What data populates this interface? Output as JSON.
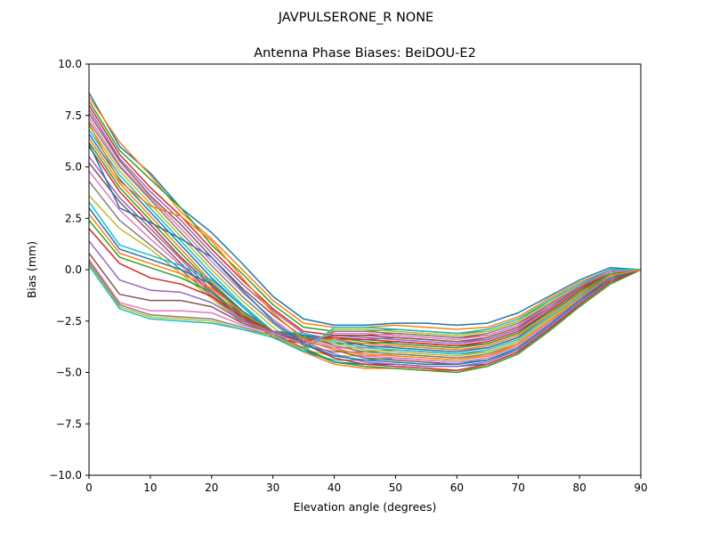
{
  "chart_data": {
    "type": "line",
    "suptitle": "JAVPULSERONE_R  NONE",
    "title": "Antenna Phase Biases: BeiDOU-E2",
    "xlabel": "Elevation angle (degrees)",
    "ylabel": "Bias (mm)",
    "xlim": [
      0,
      90
    ],
    "ylim": [
      -10,
      10
    ],
    "xticks": [
      0,
      10,
      20,
      30,
      40,
      50,
      60,
      70,
      80,
      90
    ],
    "yticks": [
      -10.0,
      -7.5,
      -5.0,
      -2.5,
      0.0,
      2.5,
      5.0,
      7.5,
      10.0
    ],
    "ytick_labels": [
      "−10.0",
      "−7.5",
      "−5.0",
      "−2.5",
      "0.0",
      "2.5",
      "5.0",
      "7.5",
      "10.0"
    ],
    "grid": false,
    "legend": "none",
    "colors": [
      "#1f77b4",
      "#ff7f0e",
      "#2ca02c",
      "#d62728",
      "#9467bd",
      "#8c564b",
      "#e377c2",
      "#7f7f7f",
      "#bcbd22",
      "#17becf"
    ],
    "x": [
      0,
      5,
      10,
      15,
      20,
      25,
      30,
      35,
      40,
      45,
      50,
      55,
      60,
      65,
      70,
      75,
      80,
      85,
      90
    ],
    "series": [
      {
        "values": [
          8.6,
          6.0,
          4.7,
          3.0,
          1.8,
          0.3,
          -1.3,
          -2.4,
          -2.7,
          -2.7,
          -2.6,
          -2.6,
          -2.7,
          -2.6,
          -2.1,
          -1.3,
          -0.5,
          0.1,
          0.0
        ]
      },
      {
        "values": [
          8.4,
          6.2,
          4.6,
          2.8,
          1.5,
          0.0,
          -1.5,
          -2.6,
          -2.8,
          -2.8,
          -2.7,
          -2.8,
          -2.9,
          -2.8,
          -2.3,
          -1.4,
          -0.6,
          0.0,
          0.0
        ]
      },
      {
        "values": [
          8.2,
          5.8,
          4.4,
          3.0,
          1.2,
          -0.2,
          -1.7,
          -2.8,
          -3.0,
          -3.0,
          -2.9,
          -3.0,
          -3.1,
          -3.0,
          -2.5,
          -1.5,
          -0.7,
          0.0,
          0.0
        ]
      },
      {
        "values": [
          8.0,
          5.6,
          4.0,
          2.6,
          1.0,
          -0.5,
          -1.9,
          -3.0,
          -3.2,
          -3.2,
          -3.1,
          -3.2,
          -3.3,
          -3.2,
          -2.7,
          -1.7,
          -0.8,
          -0.1,
          0.0
        ]
      },
      {
        "values": [
          7.8,
          5.4,
          3.8,
          2.4,
          0.8,
          -0.7,
          -2.0,
          -3.1,
          -3.4,
          -3.4,
          -3.3,
          -3.4,
          -3.5,
          -3.4,
          -2.9,
          -1.8,
          -0.9,
          -0.1,
          0.0
        ]
      },
      {
        "values": [
          7.6,
          5.3,
          3.6,
          2.2,
          0.6,
          -0.9,
          -2.2,
          -3.3,
          -3.6,
          -3.6,
          -3.5,
          -3.6,
          -3.7,
          -3.6,
          -3.1,
          -2.0,
          -1.0,
          -0.2,
          0.0
        ]
      },
      {
        "values": [
          7.4,
          5.1,
          3.5,
          2.0,
          0.4,
          -1.1,
          -2.4,
          -3.5,
          -3.8,
          -3.8,
          -3.7,
          -3.8,
          -3.9,
          -3.8,
          -3.3,
          -2.2,
          -1.1,
          -0.2,
          0.0
        ]
      },
      {
        "values": [
          7.2,
          5.0,
          3.4,
          1.8,
          0.2,
          -1.3,
          -2.6,
          -3.7,
          -4.0,
          -4.0,
          -3.9,
          -4.0,
          -4.1,
          -4.0,
          -3.5,
          -2.4,
          -1.3,
          -0.3,
          0.0
        ]
      },
      {
        "values": [
          7.0,
          4.8,
          3.2,
          1.6,
          0.0,
          -1.5,
          -2.8,
          -3.9,
          -4.2,
          -4.2,
          -4.1,
          -4.2,
          -4.3,
          -4.2,
          -3.7,
          -2.6,
          -1.4,
          -0.4,
          0.0
        ]
      },
      {
        "values": [
          6.8,
          4.6,
          3.0,
          1.4,
          -0.2,
          -1.7,
          -3.0,
          -4.0,
          -4.4,
          -4.4,
          -4.3,
          -4.4,
          -4.5,
          -4.4,
          -3.9,
          -2.8,
          -1.6,
          -0.5,
          0.0
        ]
      },
      {
        "values": [
          6.6,
          4.4,
          2.8,
          1.2,
          -0.4,
          -1.8,
          -3.1,
          -3.9,
          -4.5,
          -4.6,
          -4.6,
          -4.7,
          -4.7,
          -4.6,
          -4.0,
          -2.9,
          -1.7,
          -0.6,
          0.0
        ]
      },
      {
        "values": [
          6.4,
          4.2,
          2.6,
          1.0,
          -0.6,
          -2.0,
          -3.2,
          -4.0,
          -4.6,
          -4.8,
          -4.8,
          -4.9,
          -4.9,
          -4.7,
          -4.1,
          -3.0,
          -1.8,
          -0.7,
          0.0
        ]
      },
      {
        "values": [
          6.2,
          4.0,
          2.4,
          0.8,
          -0.7,
          -2.1,
          -3.3,
          -3.8,
          -4.5,
          -4.7,
          -4.8,
          -4.9,
          -5.0,
          -4.7,
          -4.1,
          -3.0,
          -1.8,
          -0.7,
          0.0
        ]
      },
      {
        "values": [
          6.0,
          3.8,
          2.2,
          0.6,
          -0.8,
          -2.2,
          -3.3,
          -3.6,
          -4.3,
          -4.6,
          -4.7,
          -4.8,
          -4.9,
          -4.6,
          -4.0,
          -2.9,
          -1.7,
          -0.6,
          0.0
        ]
      },
      {
        "values": [
          5.5,
          3.5,
          2.0,
          0.5,
          -1.0,
          -2.3,
          -3.2,
          -3.5,
          -4.1,
          -4.5,
          -4.6,
          -4.7,
          -4.7,
          -4.5,
          -3.9,
          -2.8,
          -1.6,
          -0.5,
          0.0
        ]
      },
      {
        "values": [
          5.2,
          3.3,
          1.8,
          0.3,
          -1.1,
          -2.4,
          -3.1,
          -3.4,
          -3.9,
          -4.3,
          -4.4,
          -4.5,
          -4.6,
          -4.4,
          -3.8,
          -2.7,
          -1.5,
          -0.5,
          0.0
        ]
      },
      {
        "values": [
          4.8,
          2.9,
          1.5,
          0.2,
          -1.2,
          -2.5,
          -3.0,
          -3.3,
          -3.8,
          -4.2,
          -4.3,
          -4.4,
          -4.5,
          -4.3,
          -3.7,
          -2.6,
          -1.5,
          -0.4,
          0.0
        ]
      },
      {
        "values": [
          4.3,
          2.4,
          1.2,
          0.0,
          -1.3,
          -2.5,
          -3.0,
          -3.2,
          -3.7,
          -4.0,
          -4.1,
          -4.2,
          -4.3,
          -4.1,
          -3.6,
          -2.5,
          -1.4,
          -0.4,
          0.0
        ]
      },
      {
        "values": [
          3.6,
          2.0,
          1.0,
          -0.2,
          -1.4,
          -2.6,
          -3.0,
          -3.1,
          -3.6,
          -3.9,
          -4.0,
          -4.1,
          -4.2,
          -4.0,
          -3.5,
          -2.4,
          -1.3,
          -0.3,
          0.0
        ]
      },
      {
        "values": [
          3.3,
          1.2,
          0.7,
          0.2,
          -0.5,
          -1.8,
          -3.0,
          -3.1,
          -3.5,
          -3.8,
          -3.9,
          -4.0,
          -4.1,
          -3.9,
          -3.4,
          -2.3,
          -1.3,
          -0.3,
          0.0
        ]
      },
      {
        "values": [
          3.0,
          1.0,
          0.5,
          0.0,
          -0.7,
          -2.0,
          -3.0,
          -3.2,
          -3.4,
          -3.7,
          -3.8,
          -3.9,
          -4.0,
          -3.8,
          -3.3,
          -2.2,
          -1.2,
          -0.3,
          0.0
        ]
      },
      {
        "values": [
          2.7,
          0.8,
          0.3,
          -0.2,
          -0.9,
          -2.1,
          -3.0,
          -3.3,
          -3.4,
          -3.6,
          -3.7,
          -3.8,
          -3.9,
          -3.7,
          -3.2,
          -2.2,
          -1.2,
          -0.2,
          0.0
        ]
      },
      {
        "values": [
          2.4,
          0.6,
          0.1,
          -0.4,
          -1.1,
          -2.2,
          -3.0,
          -3.3,
          -3.3,
          -3.5,
          -3.6,
          -3.7,
          -3.8,
          -3.6,
          -3.1,
          -2.1,
          -1.1,
          -0.2,
          0.0
        ]
      },
      {
        "values": [
          2.0,
          0.3,
          -0.4,
          -0.7,
          -1.3,
          -2.3,
          -3.0,
          -3.4,
          -3.3,
          -3.4,
          -3.5,
          -3.6,
          -3.7,
          -3.5,
          -3.0,
          -2.0,
          -1.0,
          -0.1,
          0.0
        ]
      },
      {
        "values": [
          1.4,
          -0.5,
          -1.0,
          -1.1,
          -1.6,
          -2.5,
          -3.0,
          -3.4,
          -3.2,
          -3.3,
          -3.4,
          -3.5,
          -3.6,
          -3.4,
          -2.9,
          -1.9,
          -0.9,
          -0.1,
          0.0
        ]
      },
      {
        "values": [
          0.8,
          -1.2,
          -1.5,
          -1.5,
          -1.8,
          -2.6,
          -3.1,
          -3.5,
          -3.2,
          -3.2,
          -3.3,
          -3.4,
          -3.5,
          -3.3,
          -2.8,
          -1.8,
          -0.9,
          -0.1,
          0.0
        ]
      },
      {
        "values": [
          0.5,
          -1.6,
          -2.0,
          -2.0,
          -2.1,
          -2.7,
          -3.1,
          -3.6,
          -3.1,
          -3.1,
          -3.2,
          -3.3,
          -3.4,
          -3.2,
          -2.7,
          -1.8,
          -0.8,
          -0.1,
          0.0
        ]
      },
      {
        "values": [
          0.4,
          -1.7,
          -2.2,
          -2.3,
          -2.4,
          -2.8,
          -3.2,
          -3.8,
          -3.0,
          -3.0,
          -3.1,
          -3.2,
          -3.3,
          -3.1,
          -2.6,
          -1.7,
          -0.8,
          0.0,
          0.0
        ]
      },
      {
        "values": [
          0.3,
          -1.8,
          -2.3,
          -2.4,
          -2.5,
          -2.9,
          -3.2,
          -3.9,
          -2.9,
          -2.9,
          -3.0,
          -3.1,
          -3.2,
          -3.0,
          -2.5,
          -1.6,
          -0.7,
          0.0,
          0.0
        ]
      },
      {
        "values": [
          0.2,
          -1.9,
          -2.4,
          -2.5,
          -2.6,
          -2.9,
          -3.3,
          -4.0,
          -2.8,
          -2.8,
          -2.9,
          -3.0,
          -3.1,
          -2.9,
          -2.4,
          -1.5,
          -0.7,
          0.0,
          0.0
        ]
      },
      {
        "values": [
          6.1,
          3.0,
          2.3,
          1.5,
          0.6,
          -1.0,
          -2.5,
          -3.6,
          -4.2,
          -4.4,
          -4.5,
          -4.6,
          -4.6,
          -4.4,
          -3.8,
          -2.7,
          -1.5,
          -0.4,
          0.0
        ]
      },
      {
        "values": [
          7.1,
          4.3,
          3.1,
          2.6,
          1.4,
          -0.4,
          -2.1,
          -3.4,
          -3.9,
          -4.1,
          -4.2,
          -4.3,
          -4.4,
          -4.2,
          -3.6,
          -2.5,
          -1.4,
          -0.3,
          0.0
        ]
      }
    ]
  }
}
